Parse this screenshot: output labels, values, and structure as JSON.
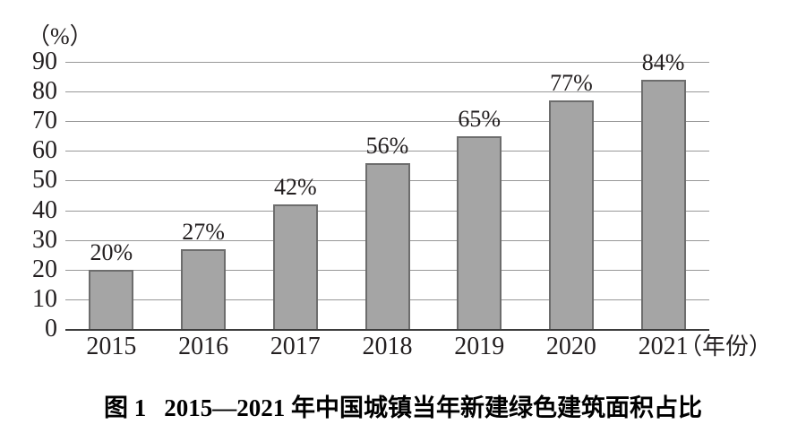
{
  "figure": {
    "kind": "static-figure-bar-chart"
  },
  "chart_data": {
    "type": "bar",
    "title": "图1 2015—2021年中国城镇当年新建绿色建筑面积占比",
    "categories": [
      "2015",
      "2016",
      "2017",
      "2018",
      "2019",
      "2020",
      "2021"
    ],
    "values": [
      20,
      27,
      42,
      56,
      65,
      77,
      84
    ],
    "bar_labels": [
      "20%",
      "27%",
      "42%",
      "56%",
      "65%",
      "77%",
      "84%"
    ],
    "ylabel": "（%）",
    "xlabel": "（年份）",
    "ylim": [
      0,
      90
    ],
    "yticks": [
      0,
      10,
      20,
      30,
      40,
      50,
      60,
      70,
      80,
      90
    ],
    "grid": true,
    "legend": "none",
    "colors": {
      "bar_fill": "#a5a5a5",
      "bar_border": "#6d6d6d",
      "gridline": "#989898",
      "axis": "#3d3d3d",
      "text": "#231f20"
    }
  },
  "caption": {
    "figure_label": "图 1",
    "title": "2015—2021 年中国城镇当年新建绿色建筑面积占比"
  }
}
